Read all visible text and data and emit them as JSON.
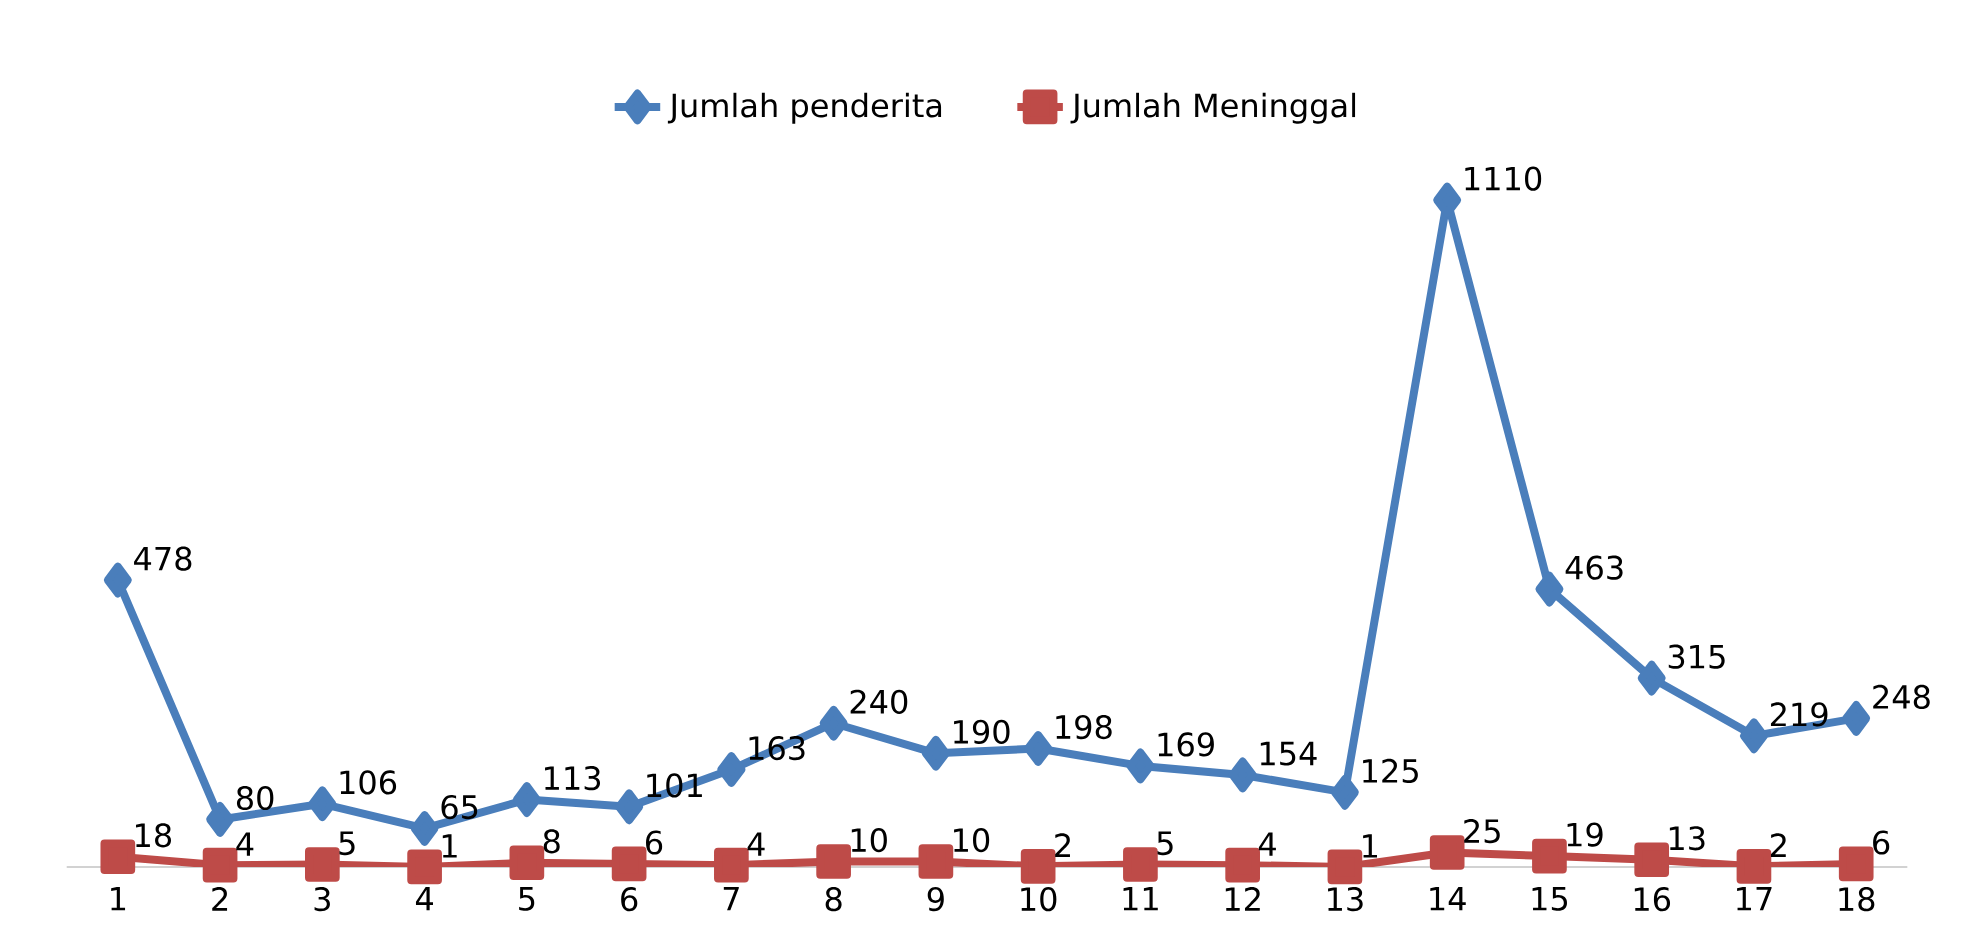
{
  "chart_data": {
    "type": "line",
    "categories": [
      "1",
      "2",
      "3",
      "4",
      "5",
      "6",
      "7",
      "8",
      "9",
      "10",
      "11",
      "12",
      "13",
      "14",
      "15",
      "16",
      "17",
      "18"
    ],
    "series": [
      {
        "name": "Jumlah penderita",
        "color": "#4a7ebb",
        "marker": "diamond",
        "values": [
          478,
          80,
          106,
          65,
          113,
          101,
          163,
          240,
          190,
          198,
          169,
          154,
          125,
          1110,
          463,
          315,
          219,
          248
        ]
      },
      {
        "name": "Jumlah Meninggal",
        "color": "#be4b48",
        "marker": "square",
        "values": [
          18,
          4,
          5,
          1,
          8,
          6,
          4,
          10,
          10,
          2,
          5,
          4,
          1,
          25,
          19,
          13,
          2,
          6
        ]
      }
    ],
    "data_labels": true,
    "legend": "top"
  }
}
